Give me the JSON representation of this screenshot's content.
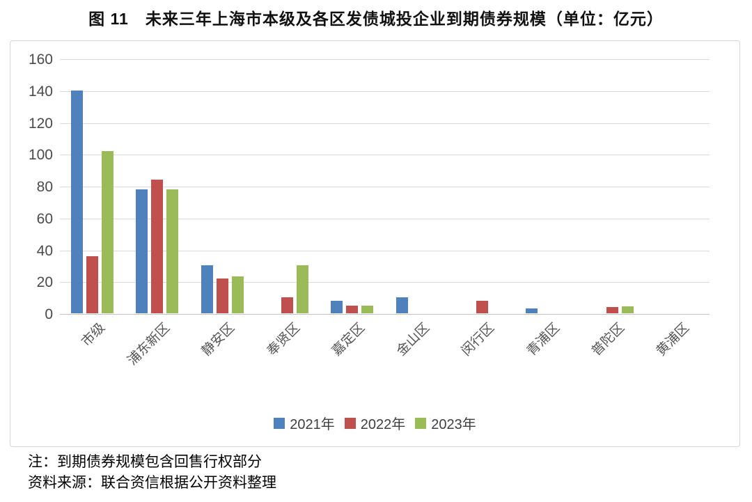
{
  "title": "图 11　未来三年上海市本级及各区发债城投企业到期债券规模（单位：亿元）",
  "notes": [
    "注：到期债券规模包含回售行权部分",
    "资料来源：联合资信根据公开资料整理"
  ],
  "colors": {
    "series_blue": "#4F81BD",
    "series_red": "#C0504D",
    "series_green": "#9BBB59",
    "gridline": "#d9d9d9",
    "axis_text": "#555555",
    "chart_border": "#d4d4d4"
  },
  "chart_data": {
    "type": "bar",
    "title": "图 11　未来三年上海市本级及各区发债城投企业到期债券规模（单位：亿元）",
    "categories": [
      "市级",
      "浦东新区",
      "静安区",
      "奉贤区",
      "嘉定区",
      "金山区",
      "闵行区",
      "青浦区",
      "普陀区",
      "黄浦区"
    ],
    "series": [
      {
        "name": "2021年",
        "color": "#4F81BD",
        "values": [
          140,
          78,
          30,
          0,
          8,
          10,
          0,
          3,
          0,
          0
        ]
      },
      {
        "name": "2022年",
        "color": "#C0504D",
        "values": [
          36,
          84,
          22,
          10,
          5,
          0,
          8,
          0,
          4,
          0
        ]
      },
      {
        "name": "2023年",
        "color": "#9BBB59",
        "values": [
          102,
          78,
          23,
          30,
          5,
          0,
          0,
          0,
          4.5,
          0
        ]
      }
    ],
    "xlabel": "",
    "ylabel": "",
    "ylim": [
      0,
      160
    ],
    "ytick_step": 20,
    "grid": true,
    "legend_position": "bottom"
  }
}
